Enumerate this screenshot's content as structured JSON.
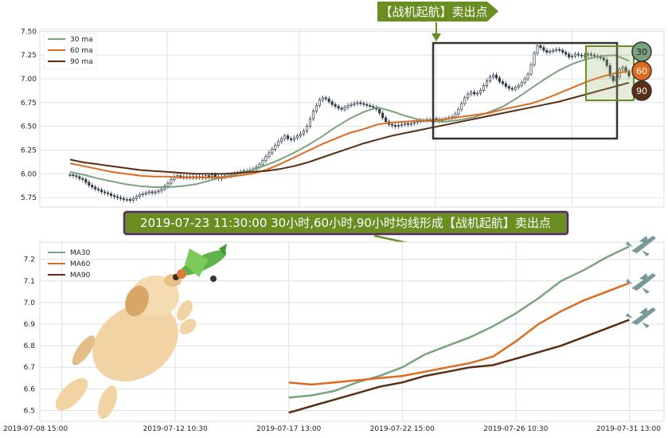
{
  "colors": {
    "ma30": "#7aa37f",
    "ma60": "#e06a1d",
    "ma90": "#5a2e14",
    "banner_bg": "#6b8e23",
    "annotation_bg": "#6b8e23",
    "annotation_border": "#5a2a6a",
    "candle": "#2b3a4a",
    "grid": "#e0e0e0",
    "plane": "#7a9a9a"
  },
  "signal_banner": {
    "text": "【战机起航】卖出点"
  },
  "annotation": {
    "text": "2019-07-23 11:30:00 30小时,60小时,90小时均线形成【战机起航】卖出点"
  },
  "badges": {
    "ma30": "30",
    "ma60": "60",
    "ma90": "90"
  },
  "chart_data": [
    {
      "type": "line",
      "name": "top-candlestick-with-moving-averages",
      "ylim": [
        5.65,
        7.52
      ],
      "y_ticks": [
        "5.75",
        "6.00",
        "6.25",
        "6.50",
        "6.75",
        "7.00",
        "7.25",
        "7.50"
      ],
      "x_tick_labels": [],
      "legend": {
        "placement": "top-left",
        "entries": [
          "30 ma",
          "60 ma",
          "90 ma"
        ]
      },
      "grid": true,
      "candles_close": [
        5.99,
        5.98,
        5.97,
        5.95,
        5.94,
        5.91,
        5.88,
        5.86,
        5.84,
        5.83,
        5.81,
        5.8,
        5.79,
        5.77,
        5.76,
        5.75,
        5.74,
        5.73,
        5.73,
        5.72,
        5.74,
        5.76,
        5.78,
        5.79,
        5.8,
        5.81,
        5.8,
        5.81,
        5.82,
        5.84,
        5.87,
        5.9,
        5.94,
        5.97,
        5.98,
        5.97,
        5.96,
        5.97,
        5.96,
        5.97,
        5.96,
        5.97,
        5.96,
        5.98,
        5.97,
        5.99,
        5.97,
        5.95,
        5.97,
        5.98,
        5.98,
        5.99,
        6.0,
        6.01,
        6.02,
        6.03,
        6.02,
        6.04,
        6.05,
        6.07,
        6.1,
        6.14,
        6.18,
        6.22,
        6.26,
        6.3,
        6.34,
        6.37,
        6.4,
        6.37,
        6.36,
        6.38,
        6.4,
        6.42,
        6.45,
        6.5,
        6.58,
        6.66,
        6.72,
        6.78,
        6.8,
        6.79,
        6.76,
        6.73,
        6.71,
        6.69,
        6.68,
        6.7,
        6.72,
        6.73,
        6.74,
        6.75,
        6.74,
        6.73,
        6.72,
        6.71,
        6.7,
        6.68,
        6.64,
        6.59,
        6.55,
        6.52,
        6.51,
        6.5,
        6.51,
        6.52,
        6.53,
        6.52,
        6.53,
        6.54,
        6.55,
        6.56,
        6.56,
        6.57,
        6.57,
        6.58,
        6.57,
        6.56,
        6.57,
        6.58,
        6.59,
        6.6,
        6.63,
        6.68,
        6.74,
        6.8,
        6.84,
        6.86,
        6.84,
        6.85,
        6.88,
        6.93,
        6.98,
        7.02,
        7.04,
        7.01,
        6.97,
        6.95,
        6.92,
        6.9,
        6.89,
        6.91,
        6.93,
        6.96,
        7.0,
        7.05,
        7.15,
        7.27,
        7.35,
        7.33,
        7.3,
        7.28,
        7.29,
        7.3,
        7.31,
        7.3,
        7.28,
        7.26,
        7.23,
        7.24,
        7.26,
        7.25,
        7.24,
        7.25,
        7.26,
        7.25,
        7.24,
        7.23,
        7.22,
        7.2,
        7.14,
        7.03,
        6.98,
        7.02,
        7.1,
        7.12,
        7.08,
        7.03
      ],
      "series": [
        {
          "name": "30 ma",
          "values": [
            6.02,
            5.99,
            5.95,
            5.92,
            5.89,
            5.87,
            5.86,
            5.86,
            5.87,
            5.89,
            5.93,
            5.97,
            6.0,
            6.04,
            6.09,
            6.15,
            6.22,
            6.3,
            6.39,
            6.49,
            6.58,
            6.65,
            6.7,
            6.66,
            6.61,
            6.57,
            6.55,
            6.55,
            6.57,
            6.6,
            6.65,
            6.71,
            6.8,
            6.9,
            7.0,
            7.09,
            7.16,
            7.21,
            7.24,
            7.25,
            7.19
          ]
        },
        {
          "name": "60 ma",
          "values": [
            6.11,
            6.08,
            6.05,
            6.02,
            6.0,
            5.98,
            5.97,
            5.97,
            5.96,
            5.96,
            5.96,
            5.96,
            5.98,
            6.0,
            6.04,
            6.1,
            6.17,
            6.24,
            6.31,
            6.37,
            6.43,
            6.47,
            6.52,
            6.54,
            6.55,
            6.56,
            6.56,
            6.58,
            6.6,
            6.62,
            6.64,
            6.68,
            6.71,
            6.74,
            6.79,
            6.85,
            6.91,
            6.97,
            7.02,
            7.06,
            7.08
          ]
        },
        {
          "name": "90 ma",
          "values": [
            6.15,
            6.12,
            6.1,
            6.08,
            6.06,
            6.04,
            6.03,
            6.02,
            6.01,
            6.0,
            6.0,
            6.0,
            6.01,
            6.02,
            6.03,
            6.05,
            6.08,
            6.12,
            6.17,
            6.22,
            6.27,
            6.32,
            6.36,
            6.4,
            6.43,
            6.46,
            6.49,
            6.52,
            6.55,
            6.58,
            6.61,
            6.64,
            6.67,
            6.7,
            6.73,
            6.76,
            6.8,
            6.84,
            6.88,
            6.92,
            6.96
          ]
        }
      ]
    },
    {
      "type": "line",
      "name": "bottom-moving-averages",
      "ylim": [
        6.45,
        7.28
      ],
      "y_ticks": [
        "6.5",
        "6.6",
        "6.7",
        "6.8",
        "6.9",
        "7.0",
        "7.1",
        "7.2"
      ],
      "x_tick_labels": [
        "2019-07-08 15:00",
        "2019-07-12 10:30",
        "2019-07-17 13:00",
        "2019-07-22 15:00",
        "2019-07-26 10:30",
        "2019-07-31 13:00"
      ],
      "legend": {
        "placement": "top-left",
        "entries": [
          "MA30",
          "MA60",
          "MA90"
        ]
      },
      "grid": true,
      "x": [
        2.0,
        2.2,
        2.4,
        2.6,
        2.8,
        3.0,
        3.2,
        3.4,
        3.6,
        3.8,
        4.0,
        4.2,
        4.4,
        4.6,
        4.8,
        5.0
      ],
      "series": [
        {
          "name": "MA30",
          "values": [
            6.56,
            6.57,
            6.59,
            6.63,
            6.66,
            6.7,
            6.76,
            6.8,
            6.84,
            6.89,
            6.95,
            7.02,
            7.1,
            7.15,
            7.21,
            7.26
          ]
        },
        {
          "name": "MA60",
          "values": [
            6.63,
            6.62,
            6.63,
            6.64,
            6.65,
            6.66,
            6.68,
            6.7,
            6.72,
            6.75,
            6.82,
            6.9,
            6.96,
            7.01,
            7.05,
            7.09
          ]
        },
        {
          "name": "MA90",
          "values": [
            6.49,
            6.52,
            6.55,
            6.58,
            6.61,
            6.63,
            6.66,
            6.68,
            6.7,
            6.71,
            6.74,
            6.77,
            6.8,
            6.84,
            6.88,
            6.92
          ]
        }
      ]
    }
  ]
}
